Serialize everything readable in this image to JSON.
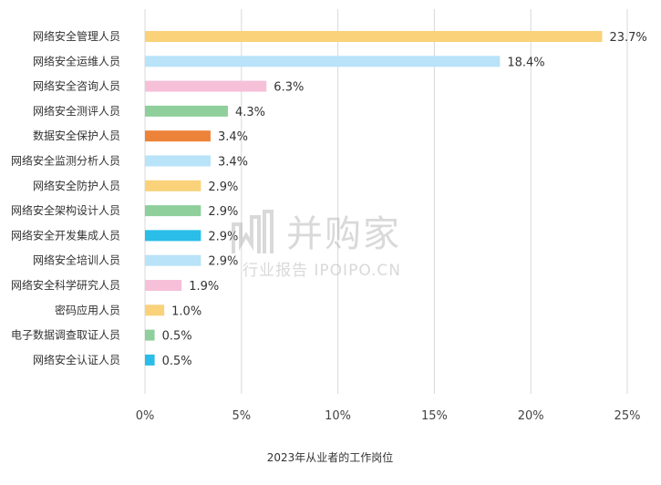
{
  "chart_data": {
    "type": "bar",
    "orientation": "horizontal",
    "xlabel": "2023年从业者的工作岗位",
    "xlim": [
      0,
      25
    ],
    "xticks": [
      "0%",
      "5%",
      "10%",
      "15%",
      "20%",
      "25%"
    ],
    "grid": true,
    "categories": [
      "网络安全管理人员",
      "网络安全运维人员",
      "网络安全咨询人员",
      "网络安全测评人员",
      "数据安全保护人员",
      "网络安全监测分析人员",
      "网络安全防护人员",
      "网络安全架构设计人员",
      "网络安全开发集成人员",
      "网络安全培训人员",
      "网络安全科学研究人员",
      "密码应用人员",
      "电子数据调查取证人员",
      "网络安全认证人员"
    ],
    "values": [
      23.7,
      18.4,
      6.3,
      4.3,
      3.4,
      3.4,
      2.9,
      2.9,
      2.9,
      2.9,
      1.9,
      1.0,
      0.5,
      0.5
    ],
    "value_labels": [
      "23.7%",
      "18.4%",
      "6.3%",
      "4.3%",
      "3.4%",
      "3.4%",
      "2.9%",
      "2.9%",
      "2.9%",
      "2.9%",
      "1.9%",
      "1.0%",
      "0.5%",
      "0.5%"
    ],
    "colors": [
      "#f9d27a",
      "#b8e3f8",
      "#f6c0d8",
      "#8fcf9b",
      "#ec8339",
      "#b8e3f8",
      "#f9d27a",
      "#8fcf9b",
      "#29bde8",
      "#b8e3f8",
      "#f6c0d8",
      "#f9d27a",
      "#8fcf9b",
      "#29bde8"
    ]
  },
  "watermark": {
    "main": "并购家",
    "sub": "行业报告 IPOIPO.CN"
  }
}
